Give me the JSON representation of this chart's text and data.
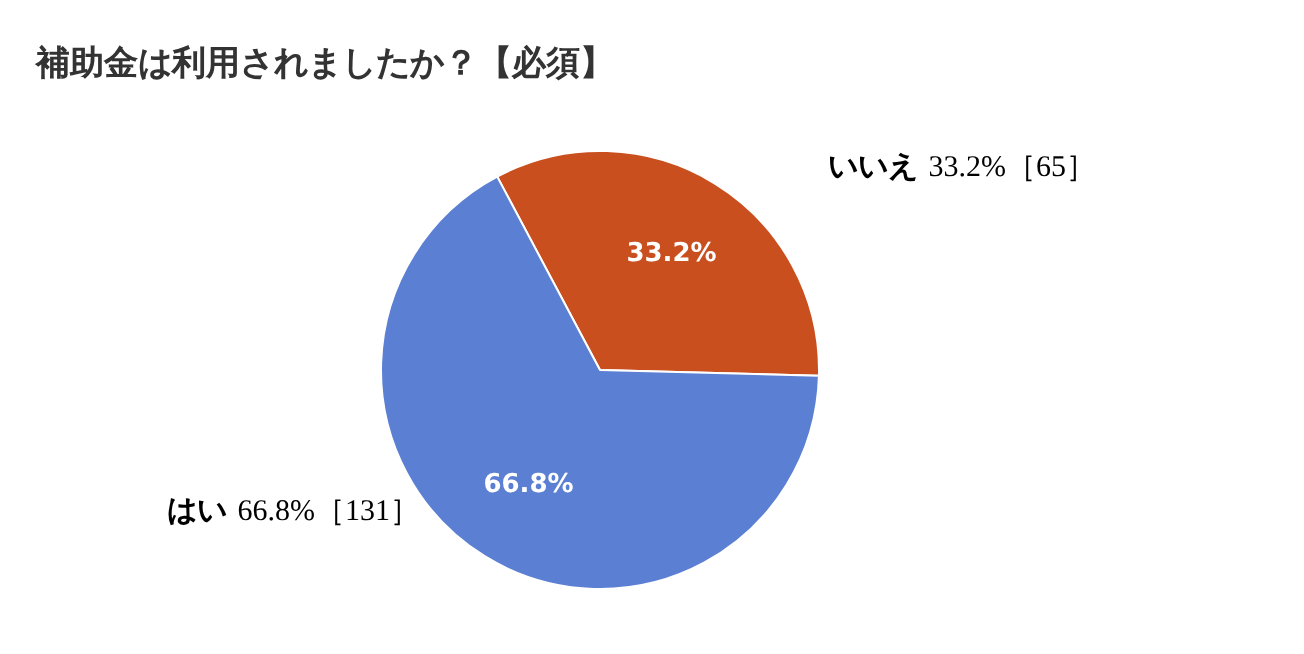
{
  "chart_data": {
    "type": "pie",
    "title": "補助金は利用されましたか？【必須】",
    "categories": [
      "いいえ",
      "はい"
    ],
    "values": [
      33.2,
      66.8
    ],
    "colors": [
      "#c94f1f",
      "#5b7fd3"
    ],
    "value_labels": [
      "33.2%",
      "66.8%"
    ],
    "annotations": [
      "33.2%［65］",
      "66.8%［131］"
    ],
    "legend": false
  }
}
